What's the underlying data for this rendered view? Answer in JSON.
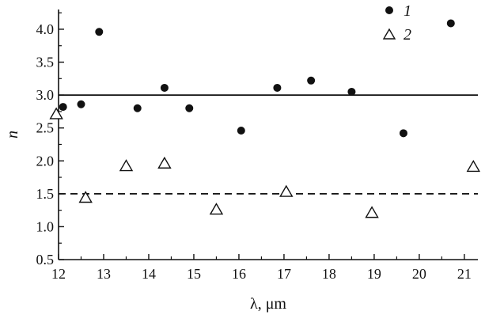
{
  "chart_data": {
    "type": "scatter",
    "title": "",
    "xlabel": "λ, μm",
    "ylabel": "n",
    "xlim": [
      12,
      21.3
    ],
    "ylim": [
      0.5,
      4.3
    ],
    "x_ticks": [
      "12",
      "13",
      "14",
      "15",
      "16",
      "17",
      "18",
      "19",
      "20",
      "21"
    ],
    "y_ticks": [
      "0.5",
      "1.0",
      "1.5",
      "2.0",
      "2.5",
      "3.0",
      "3.5",
      "4.0"
    ],
    "legend_position": "top-right",
    "series": [
      {
        "name": "1",
        "marker": "filled-circle",
        "color": "#111111",
        "x": [
          12.1,
          12.5,
          12.9,
          13.75,
          14.35,
          14.9,
          16.05,
          16.85,
          17.6,
          18.5,
          19.65,
          20.7
        ],
        "y": [
          2.82,
          2.86,
          3.96,
          2.8,
          3.11,
          2.8,
          2.46,
          3.11,
          3.22,
          3.05,
          2.42,
          4.09
        ]
      },
      {
        "name": "2",
        "marker": "open-triangle",
        "color": "#111111",
        "x": [
          11.95,
          12.6,
          13.5,
          14.35,
          15.5,
          17.05,
          18.95,
          21.2
        ],
        "y": [
          2.72,
          1.45,
          1.93,
          1.97,
          1.27,
          1.54,
          1.22,
          1.92
        ]
      }
    ],
    "reference_lines": [
      {
        "y": 3.0,
        "style": "solid",
        "color": "#111111"
      },
      {
        "y": 1.5,
        "style": "dashed",
        "color": "#111111"
      }
    ]
  }
}
